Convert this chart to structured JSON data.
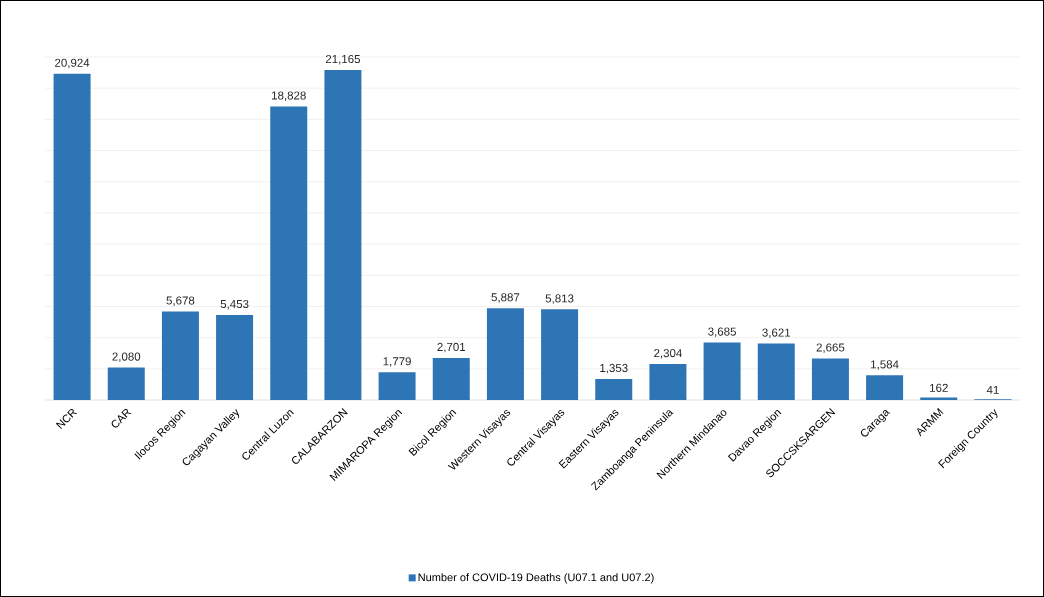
{
  "chart_data": {
    "type": "bar",
    "categories": [
      "NCR",
      "CAR",
      "Ilocos Region",
      "Cagayan Valley",
      "Central Luzon",
      "CALABARZON",
      "MIMAROPA Region",
      "Bicol Region",
      "Western Visayas",
      "Central Visayas",
      "Eastern Visayas",
      "Zamboanga Peninsula",
      "Northern Mindanao",
      "Davao Region",
      "SOCCSKSARGEN",
      "Caraga",
      "ARMM",
      "Foreign Country"
    ],
    "series": [
      {
        "name": "Number of COVID-19 Deaths (U07.1 and U07.2)",
        "color": "#2e75b6",
        "values": [
          20924,
          2080,
          5678,
          5453,
          18828,
          21165,
          1779,
          2701,
          5887,
          5813,
          1353,
          2304,
          3685,
          3621,
          2665,
          1584,
          162,
          41
        ],
        "value_labels": [
          "20,924",
          "2,080",
          "5,678",
          "5,453",
          "18,828",
          "21,165",
          "1,779",
          "2,701",
          "5,887",
          "5,813",
          "1,353",
          "2,304",
          "3,685",
          "3,621",
          "2,665",
          "1,584",
          "162",
          "41"
        ]
      }
    ],
    "tick_labels": "x",
    "grid": "y",
    "legend": "bottom"
  }
}
